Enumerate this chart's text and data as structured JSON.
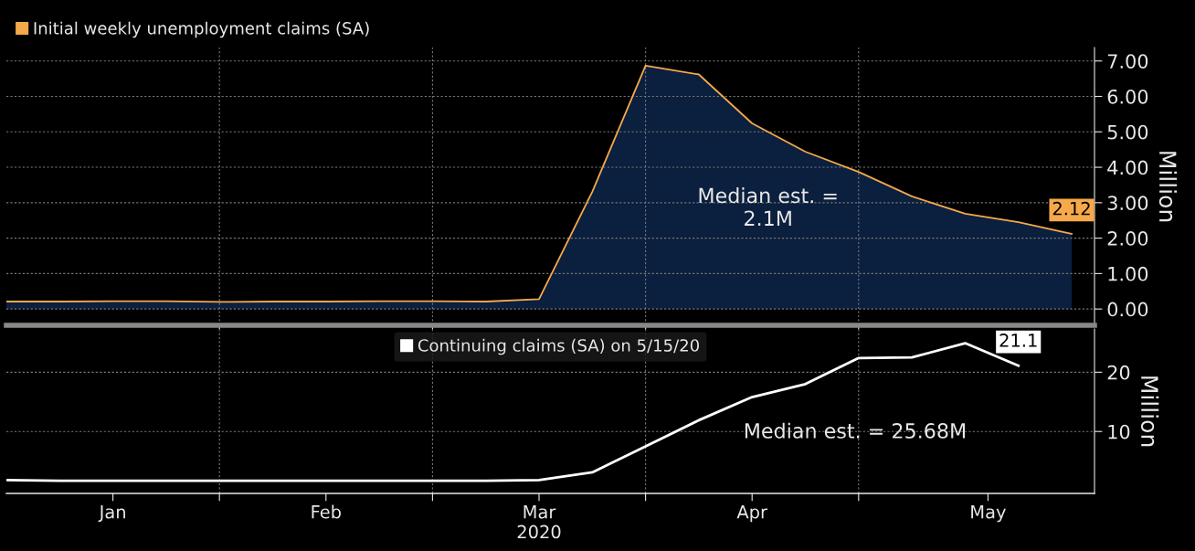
{
  "chart_data": [
    {
      "type": "area",
      "x": [
        "2020-01-04",
        "2020-01-11",
        "2020-01-18",
        "2020-01-25",
        "2020-02-01",
        "2020-02-08",
        "2020-02-15",
        "2020-02-22",
        "2020-02-29",
        "2020-03-07",
        "2020-03-14",
        "2020-03-21",
        "2020-03-28",
        "2020-04-04",
        "2020-04-11",
        "2020-04-18",
        "2020-04-25",
        "2020-05-02",
        "2020-05-09",
        "2020-05-16",
        "2020-05-23"
      ],
      "series": [
        {
          "type": "area",
          "color": "#0b1f3e",
          "values": [
            0.21,
            0.21,
            0.22,
            0.22,
            0.2,
            0.21,
            0.21,
            0.22,
            0.22,
            0.21,
            0.28,
            3.31,
            6.87,
            6.62,
            5.24,
            4.44,
            3.87,
            3.18,
            2.69,
            2.45,
            2.12
          ]
        },
        {
          "type": "line",
          "name": "Initial weekly unemployment claims (SA)",
          "color": "#f5a94a",
          "values": [
            0.21,
            0.21,
            0.22,
            0.22,
            0.2,
            0.21,
            0.21,
            0.22,
            0.22,
            0.21,
            0.28,
            3.31,
            6.87,
            6.62,
            5.24,
            4.44,
            3.87,
            3.18,
            2.69,
            2.45,
            2.12
          ],
          "value_labels": [
            null,
            null,
            null,
            null,
            null,
            null,
            null,
            null,
            null,
            null,
            null,
            null,
            null,
            null,
            null,
            null,
            null,
            null,
            null,
            null,
            "2.12"
          ]
        }
      ],
      "xlim": [
        "2020-01-04",
        "2020-05-26"
      ],
      "xticks": [
        {
          "value": "2020-02-01",
          "label": null
        },
        {
          "value": "2020-02-29",
          "label": null
        },
        {
          "value": "2020-03-28",
          "label": null
        },
        {
          "value": "2020-04-25",
          "label": null
        }
      ],
      "ylim": [
        -0.46,
        7.38
      ],
      "yticks": [
        {
          "value": 0,
          "label": "0.00"
        },
        {
          "value": 1,
          "label": "1.00"
        },
        {
          "value": 2,
          "label": "2.00"
        },
        {
          "value": 3,
          "label": "3.00"
        },
        {
          "value": 4,
          "label": "4.00"
        },
        {
          "value": 5,
          "label": "5.00"
        },
        {
          "value": 6,
          "label": "6.00"
        },
        {
          "value": 7,
          "label": "7.00"
        }
      ],
      "ylabel": "Million",
      "tick_labels": "y",
      "grid": true,
      "legend": "top left",
      "annotations": [
        "Median est. =\n2.1M"
      ]
    },
    {
      "type": "line",
      "x": [
        "2020-01-04",
        "2020-01-11",
        "2020-01-18",
        "2020-01-25",
        "2020-02-01",
        "2020-02-08",
        "2020-02-15",
        "2020-02-22",
        "2020-02-29",
        "2020-03-07",
        "2020-03-14",
        "2020-03-21",
        "2020-03-28",
        "2020-04-04",
        "2020-04-11",
        "2020-04-18",
        "2020-04-25",
        "2020-05-02",
        "2020-05-09",
        "2020-05-16"
      ],
      "series": [
        {
          "name": "Continuing claims (SA) on 5/15/20",
          "color": "#ffffff",
          "values": [
            1.8,
            1.7,
            1.7,
            1.7,
            1.7,
            1.7,
            1.7,
            1.7,
            1.7,
            1.7,
            1.8,
            3.1,
            7.5,
            11.9,
            15.8,
            18.0,
            22.4,
            22.5,
            24.9,
            21.1
          ],
          "value_labels": [
            null,
            null,
            null,
            null,
            null,
            null,
            null,
            null,
            null,
            null,
            null,
            null,
            null,
            null,
            null,
            null,
            null,
            null,
            null,
            "21.1"
          ]
        }
      ],
      "xlim": [
        "2020-01-04",
        "2020-05-26"
      ],
      "xticks": [
        {
          "value": "2020-01-18",
          "label": "Jan"
        },
        {
          "value": "2020-02-01",
          "label": null
        },
        {
          "value": "2020-02-15",
          "label": "Feb"
        },
        {
          "value": "2020-02-29",
          "label": null
        },
        {
          "value": "2020-03-14",
          "label": "Mar\n2020"
        },
        {
          "value": "2020-03-28",
          "label": null
        },
        {
          "value": "2020-04-11",
          "label": "Apr"
        },
        {
          "value": "2020-04-25",
          "label": null
        },
        {
          "value": "2020-05-12",
          "label": "May"
        }
      ],
      "ylim": [
        -0.45,
        27.3
      ],
      "yticks": [
        {
          "value": 10,
          "label": "10"
        },
        {
          "value": 20,
          "label": "20"
        }
      ],
      "ylabel": "Million",
      "grid": true,
      "legend": "top",
      "annotations": [
        "Median est. = 25.68M"
      ]
    }
  ]
}
